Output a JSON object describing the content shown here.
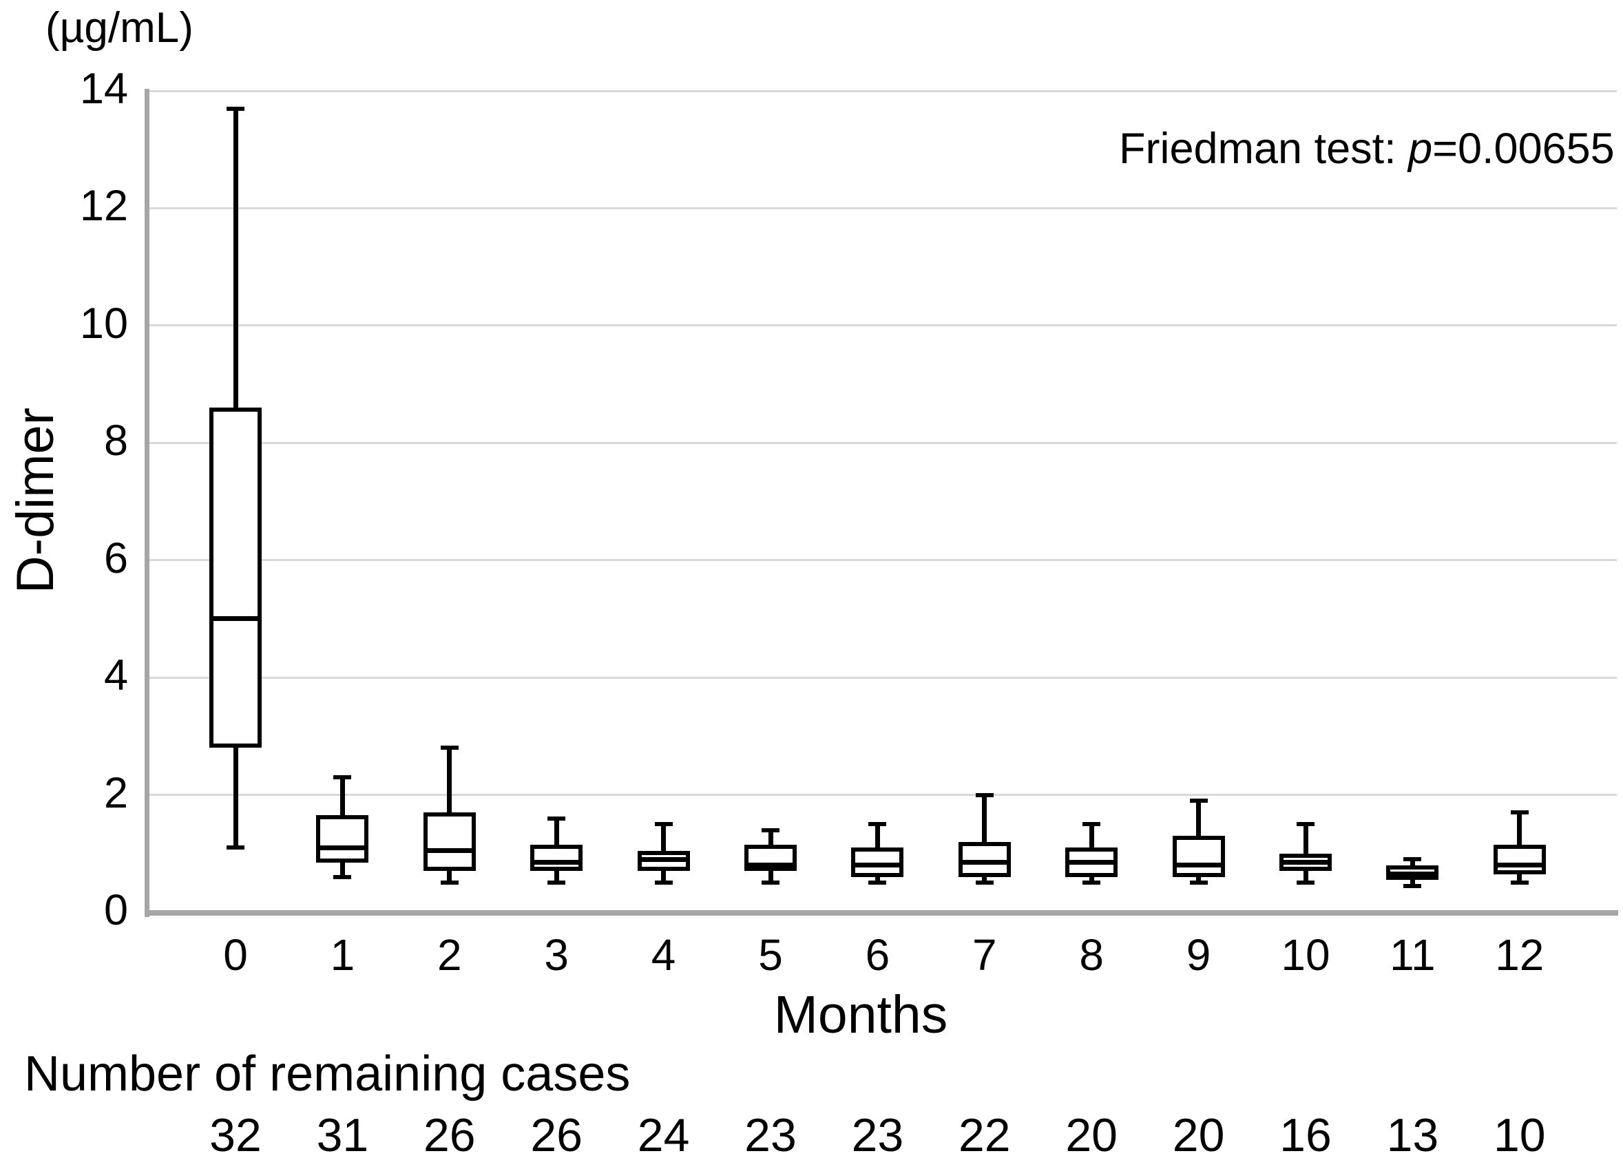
{
  "figure": {
    "unit_label": "(µg/mL)",
    "y_axis_label": "D-dimer",
    "x_axis_label": "Months",
    "annotation": {
      "prefix": "Friedman test: ",
      "p_symbol": "p",
      "value": "=0.00655"
    },
    "remaining_cases_label": "Number of remaining cases"
  },
  "colors": {
    "box_stroke": "#000000",
    "gridline": "#d9d9d9",
    "axis_line": "#a6a6a6",
    "text": "#000000",
    "background": "#ffffff"
  },
  "chart_data": {
    "type": "boxplot",
    "title": "",
    "xlabel": "Months",
    "ylabel": "D-dimer",
    "y_unit": "µg/mL",
    "ylim": [
      0,
      14
    ],
    "yticks": [
      0,
      2,
      4,
      6,
      8,
      10,
      12,
      14
    ],
    "grid": true,
    "legend": "none",
    "annotation": "Friedman test: p=0.00655",
    "categories": [
      "0",
      "1",
      "2",
      "3",
      "4",
      "5",
      "6",
      "7",
      "8",
      "9",
      "10",
      "11",
      "12"
    ],
    "series": [
      {
        "name": "D-dimer",
        "boxes": [
          {
            "category": "0",
            "min": 1.1,
            "q1": 2.8,
            "median": 5.0,
            "q3": 8.6,
            "max": 13.7
          },
          {
            "category": "1",
            "min": 0.6,
            "q1": 0.85,
            "median": 1.1,
            "q3": 1.65,
            "max": 2.3
          },
          {
            "category": "2",
            "min": 0.5,
            "q1": 0.7,
            "median": 1.05,
            "q3": 1.7,
            "max": 2.8
          },
          {
            "category": "3",
            "min": 0.5,
            "q1": 0.7,
            "median": 0.85,
            "q3": 1.15,
            "max": 1.6
          },
          {
            "category": "4",
            "min": 0.5,
            "q1": 0.7,
            "median": 0.9,
            "q3": 1.05,
            "max": 1.5
          },
          {
            "category": "5",
            "min": 0.5,
            "q1": 0.7,
            "median": 0.8,
            "q3": 1.15,
            "max": 1.4
          },
          {
            "category": "6",
            "min": 0.5,
            "q1": 0.6,
            "median": 0.8,
            "q3": 1.1,
            "max": 1.5
          },
          {
            "category": "7",
            "min": 0.5,
            "q1": 0.6,
            "median": 0.85,
            "q3": 1.2,
            "max": 2.0
          },
          {
            "category": "8",
            "min": 0.5,
            "q1": 0.6,
            "median": 0.85,
            "q3": 1.1,
            "max": 1.5
          },
          {
            "category": "9",
            "min": 0.5,
            "q1": 0.6,
            "median": 0.8,
            "q3": 1.3,
            "max": 1.9
          },
          {
            "category": "10",
            "min": 0.5,
            "q1": 0.7,
            "median": 0.85,
            "q3": 1.0,
            "max": 1.5
          },
          {
            "category": "11",
            "min": 0.45,
            "q1": 0.55,
            "median": 0.65,
            "q3": 0.8,
            "max": 0.9
          },
          {
            "category": "12",
            "min": 0.5,
            "q1": 0.65,
            "median": 0.8,
            "q3": 1.15,
            "max": 1.7
          }
        ]
      }
    ],
    "remaining_cases": [
      32,
      31,
      26,
      26,
      24,
      23,
      23,
      22,
      20,
      20,
      16,
      13,
      10
    ]
  }
}
